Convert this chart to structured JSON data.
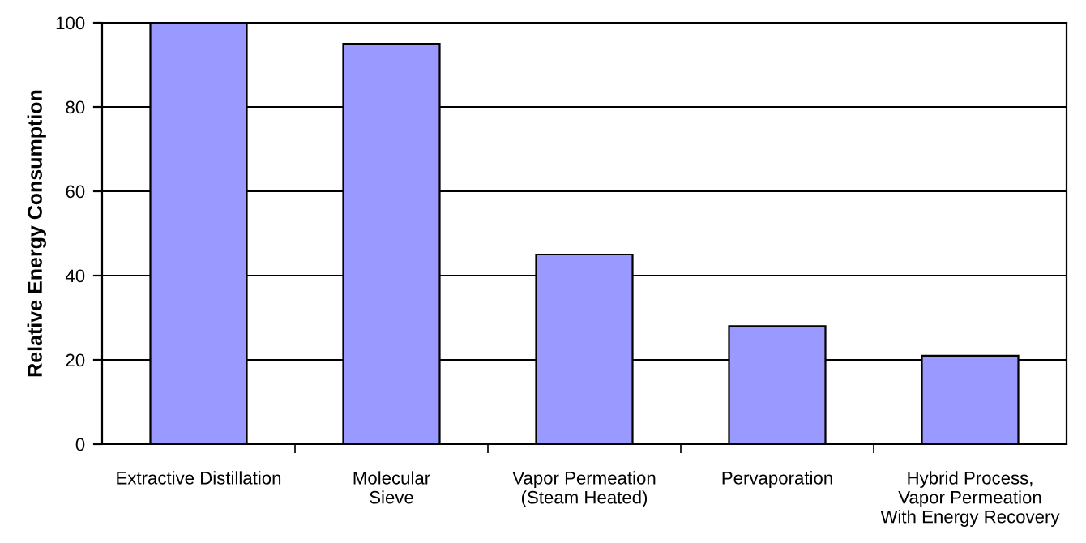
{
  "chart_data": {
    "type": "bar",
    "ylabel": "Relative Energy Consumption",
    "categories": [
      "Extractive Distillation",
      "Molecular\nSieve",
      "Vapor Permeation\n(Steam Heated)",
      "Pervaporation",
      "Hybrid Process,\nVapor Permeation\nWith Energy Recovery"
    ],
    "values": [
      100,
      95,
      45,
      28,
      21
    ],
    "color": "#9999ff",
    "ylim": [
      0,
      100
    ],
    "yticks": [
      0,
      20,
      40,
      60,
      80,
      100
    ],
    "grid": "y",
    "legend": false
  }
}
